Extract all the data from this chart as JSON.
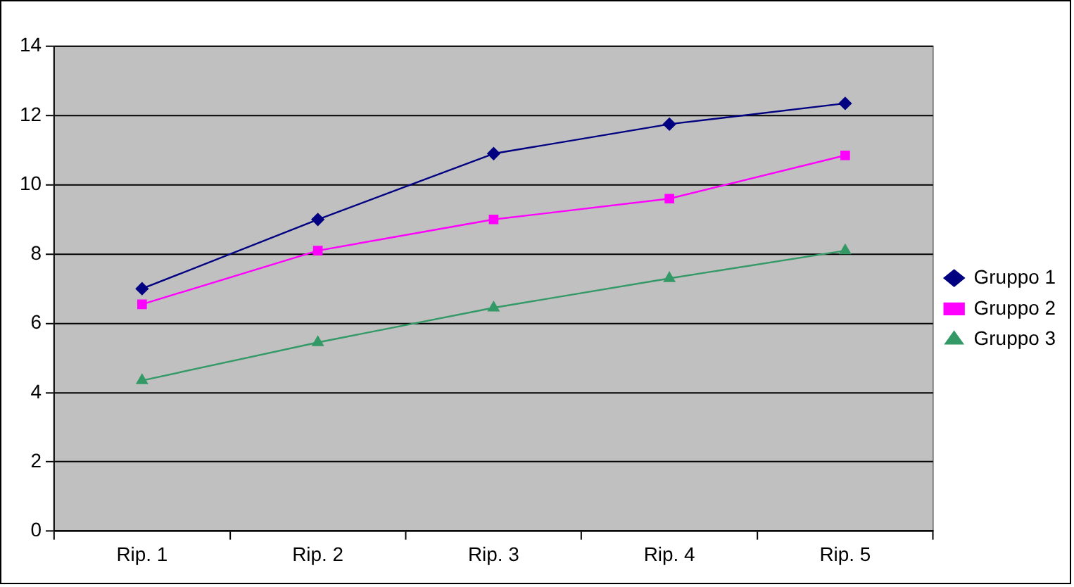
{
  "chart_data": {
    "type": "line",
    "categories": [
      "Rip. 1",
      "Rip. 2",
      "Rip. 3",
      "Rip. 4",
      "Rip. 5"
    ],
    "series": [
      {
        "name": "Gruppo 1",
        "color": "#000080",
        "marker": "diamond",
        "values": [
          7.0,
          9.0,
          10.9,
          11.75,
          12.35
        ]
      },
      {
        "name": "Gruppo 2",
        "color": "#ff00ff",
        "marker": "square",
        "values": [
          6.55,
          8.1,
          9.0,
          9.6,
          10.85
        ]
      },
      {
        "name": "Gruppo 3",
        "color": "#339966",
        "marker": "triangle",
        "values": [
          4.35,
          5.45,
          6.45,
          7.3,
          8.1
        ]
      }
    ],
    "ylim": [
      0,
      14
    ],
    "yticks": [
      0,
      2,
      4,
      6,
      8,
      10,
      12,
      14
    ],
    "grid": "y",
    "legend": "right",
    "line_style": "solid"
  }
}
